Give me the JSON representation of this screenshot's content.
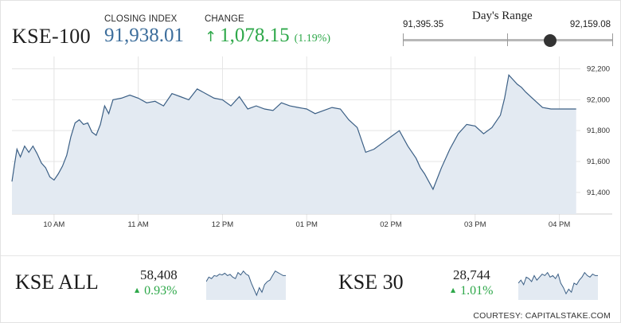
{
  "header": {
    "index_name": "KSE-100",
    "closing_label": "CLOSING INDEX",
    "closing_value": "91,938.01",
    "change_label": "CHANGE",
    "change_value": "1,078.15",
    "change_pct": "(1.19%)",
    "change_icon": "arrow-up-icon"
  },
  "days_range": {
    "title": "Day's Range",
    "low": "91,395.35",
    "high": "92,159.08",
    "position": 0.7
  },
  "colors": {
    "positive": "#2ea84a",
    "index_blue": "#3d6e9c",
    "line": "#3b5f85",
    "fill": "#e3eaf2"
  },
  "chart_data": [
    {
      "type": "area",
      "title": "",
      "xlabel": "",
      "ylabel": "",
      "y_axis_side": "right",
      "grid": true,
      "xlim": [
        9.5,
        16.25
      ],
      "ylim": [
        91260,
        92280
      ],
      "x_ticks": [
        {
          "x": 10,
          "label": "10 AM"
        },
        {
          "x": 11,
          "label": "11 AM"
        },
        {
          "x": 12,
          "label": "12 PM"
        },
        {
          "x": 13,
          "label": "01 PM"
        },
        {
          "x": 14,
          "label": "02 PM"
        },
        {
          "x": 15,
          "label": "03 PM"
        },
        {
          "x": 16,
          "label": "04 PM"
        }
      ],
      "y_ticks": [
        {
          "y": 91400,
          "label": "91,400"
        },
        {
          "y": 91600,
          "label": "91,600"
        },
        {
          "y": 91800,
          "label": "91,800"
        },
        {
          "y": 92000,
          "label": "92,000"
        },
        {
          "y": 92200,
          "label": "92,200"
        }
      ],
      "series": [
        {
          "x": [
            9.5,
            9.53,
            9.56,
            9.6,
            9.65,
            9.7,
            9.75,
            9.8,
            9.85,
            9.9,
            9.95,
            10.0,
            10.05,
            10.1,
            10.15,
            10.2,
            10.25,
            10.3,
            10.35,
            10.4,
            10.45,
            10.5,
            10.55,
            10.6,
            10.65,
            10.7,
            10.8,
            10.9,
            11.0,
            11.1,
            11.2,
            11.3,
            11.4,
            11.5,
            11.6,
            11.7,
            11.8,
            11.9,
            12.0,
            12.1,
            12.2,
            12.3,
            12.4,
            12.5,
            12.6,
            12.7,
            12.8,
            12.9,
            13.0,
            13.1,
            13.2,
            13.3,
            13.4,
            13.5,
            13.6,
            13.7,
            13.8,
            13.9,
            14.0,
            14.1,
            14.2,
            14.3,
            14.35,
            14.4,
            14.5,
            14.6,
            14.7,
            14.8,
            14.9,
            15.0,
            15.1,
            15.2,
            15.3,
            15.35,
            15.4,
            15.45,
            15.5,
            15.55,
            15.6,
            15.7,
            15.8,
            15.9,
            16.0,
            16.1,
            16.2
          ],
          "y": [
            91470,
            91580,
            91680,
            91630,
            91700,
            91660,
            91700,
            91650,
            91590,
            91560,
            91500,
            91480,
            91520,
            91570,
            91640,
            91760,
            91850,
            91870,
            91840,
            91850,
            91790,
            91770,
            91840,
            91960,
            91910,
            92000,
            92010,
            92030,
            92010,
            91980,
            91990,
            91960,
            92040,
            92020,
            92000,
            92070,
            92040,
            92010,
            92000,
            91960,
            92020,
            91940,
            91960,
            91940,
            91930,
            91980,
            91960,
            91950,
            91940,
            91910,
            91930,
            91950,
            91940,
            91870,
            91820,
            91660,
            91680,
            91720,
            91760,
            91800,
            91700,
            91620,
            91560,
            91520,
            91420,
            91560,
            91680,
            91780,
            91840,
            91830,
            91780,
            91820,
            91900,
            92010,
            92160,
            92130,
            92100,
            92080,
            92050,
            92000,
            91950,
            91940,
            91940,
            91940,
            91940
          ]
        }
      ]
    },
    {
      "type": "area",
      "title": "KSE ALL",
      "value": "58,408",
      "change": "0.93%",
      "sparkline": [
        0.5,
        0.35,
        0.4,
        0.3,
        0.32,
        0.25,
        0.28,
        0.22,
        0.3,
        0.26,
        0.35,
        0.4,
        0.2,
        0.28,
        0.15,
        0.25,
        0.3,
        0.55,
        0.75,
        0.95,
        0.7,
        0.85,
        0.6,
        0.5,
        0.45,
        0.3,
        0.15,
        0.2,
        0.25,
        0.3,
        0.3
      ]
    },
    {
      "type": "area",
      "title": "KSE 30",
      "value": "28,744",
      "change": "1.01%",
      "sparkline": [
        0.55,
        0.45,
        0.6,
        0.35,
        0.4,
        0.5,
        0.3,
        0.45,
        0.35,
        0.25,
        0.3,
        0.2,
        0.35,
        0.3,
        0.4,
        0.25,
        0.55,
        0.7,
        0.9,
        0.75,
        0.85,
        0.55,
        0.6,
        0.45,
        0.35,
        0.2,
        0.3,
        0.35,
        0.25,
        0.3,
        0.3
      ]
    }
  ],
  "credit": "COURTESY: CAPITALSTAKE.COM"
}
